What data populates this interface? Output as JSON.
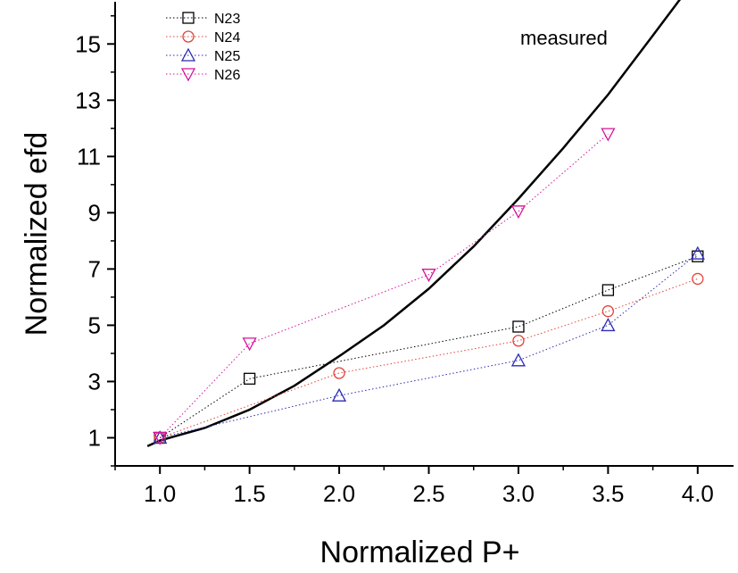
{
  "chart_data": {
    "type": "scatter",
    "xlabel": "Normalized P+",
    "ylabel": "Normalized efd",
    "xlim": [
      0.75,
      4.2
    ],
    "ylim": [
      0,
      16.5
    ],
    "xticks": [
      "1.0",
      "1.5",
      "2.0",
      "2.5",
      "3.0",
      "3.5",
      "4.0"
    ],
    "yticks": [
      "1",
      "3",
      "5",
      "7",
      "9",
      "11",
      "13",
      "15"
    ],
    "grid": false,
    "legend_position": "top-left",
    "annotation": "measured",
    "series": [
      {
        "name": "N23",
        "marker": "square",
        "color": "#000000",
        "x": [
          1.0,
          1.5,
          3.0,
          3.5,
          4.0
        ],
        "y": [
          1.0,
          3.1,
          4.95,
          6.25,
          7.45
        ]
      },
      {
        "name": "N24",
        "marker": "circle",
        "color": "#e0433a",
        "x": [
          1.0,
          2.0,
          3.0,
          3.5,
          4.0
        ],
        "y": [
          1.0,
          3.3,
          4.45,
          5.5,
          6.65
        ]
      },
      {
        "name": "N25",
        "marker": "triangle-up",
        "color": "#2b2bb5",
        "x": [
          1.0,
          2.0,
          3.0,
          3.5,
          4.0
        ],
        "y": [
          1.0,
          2.5,
          3.75,
          5.0,
          7.55
        ]
      },
      {
        "name": "N26",
        "marker": "triangle-down",
        "color": "#d4149a",
        "x": [
          1.0,
          1.5,
          2.5,
          3.0,
          3.5
        ],
        "y": [
          1.0,
          4.35,
          6.8,
          9.05,
          11.8
        ]
      }
    ],
    "measured_curve": {
      "color": "#000000",
      "x": [
        0.93,
        1.0,
        1.25,
        1.5,
        1.75,
        2.0,
        2.25,
        2.5,
        2.75,
        3.0,
        3.25,
        3.5,
        3.75,
        3.95
      ],
      "y": [
        0.7,
        0.9,
        1.35,
        2.0,
        2.85,
        3.9,
        5.0,
        6.3,
        7.8,
        9.5,
        11.3,
        13.2,
        15.3,
        17.0
      ]
    }
  }
}
